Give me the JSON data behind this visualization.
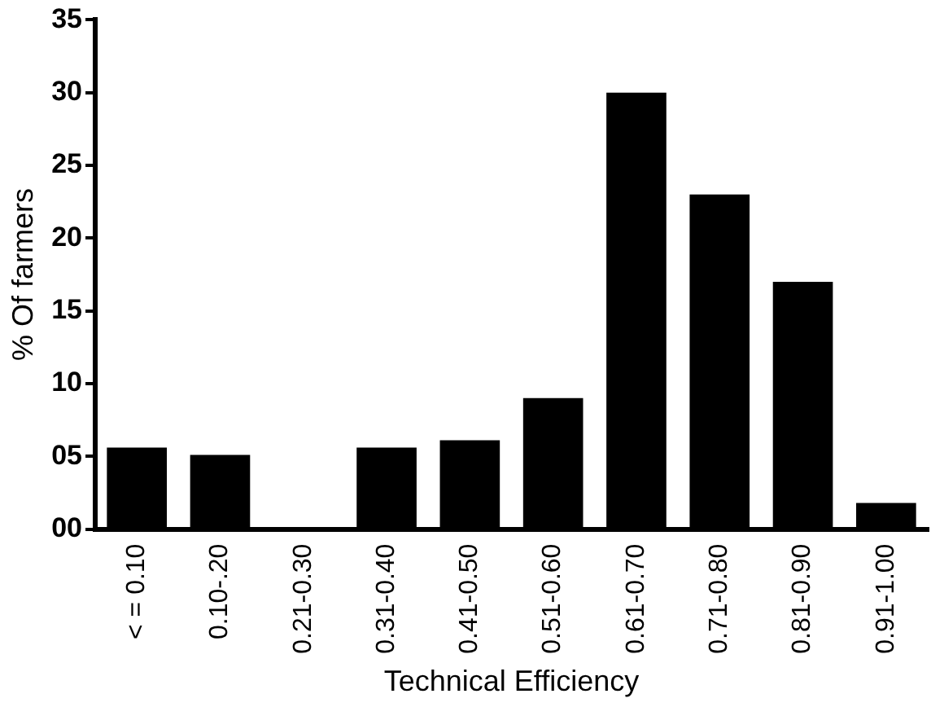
{
  "chart_data": {
    "type": "bar",
    "xlabel": "Technical Efficiency",
    "ylabel": "% Of farmers",
    "categories": [
      "< = 0.10",
      "0.10-.20",
      "0.21-0.30",
      "0.31-0.40",
      "0.41-0.50",
      "0.51-0.60",
      "0.61-0.70",
      "0.71-0.80",
      "0.81-0.90",
      "0.91-1.00"
    ],
    "values": [
      5.6,
      5.1,
      0,
      5.6,
      6.1,
      9.0,
      30.0,
      23.0,
      17.0,
      1.8
    ],
    "color": "#000000",
    "ylim": [
      0,
      35
    ],
    "yticks": [
      {
        "value": 0,
        "label": "00"
      },
      {
        "value": 5,
        "label": "05"
      },
      10,
      15,
      20,
      25,
      30,
      35
    ],
    "grid": false,
    "legend": false
  }
}
